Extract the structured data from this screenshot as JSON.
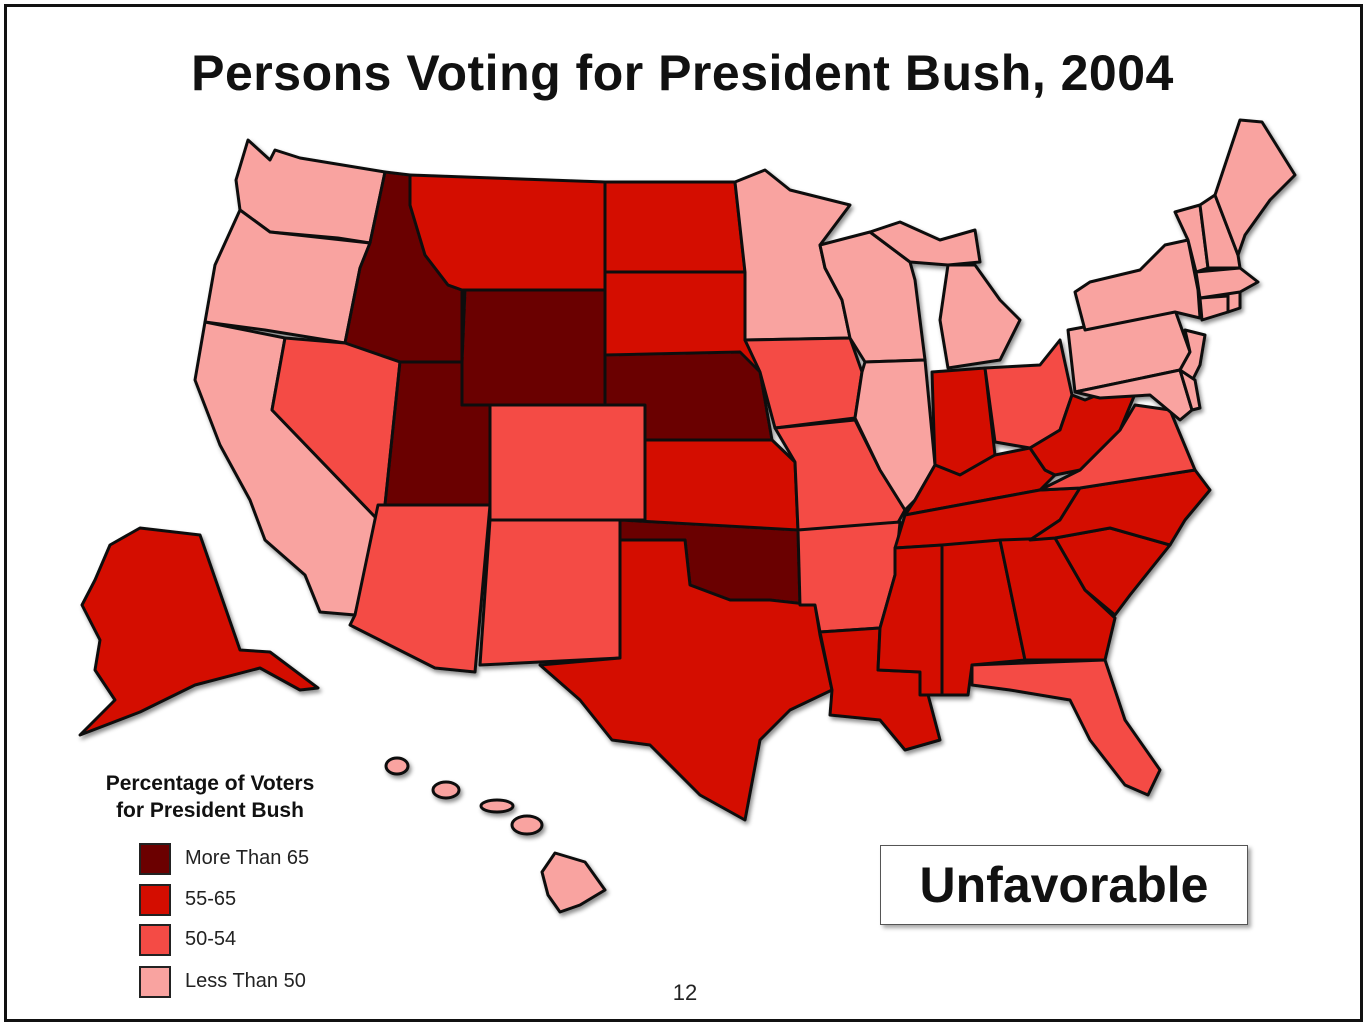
{
  "title": "Persons Voting for President Bush, 2004",
  "legend": {
    "title_line1": "Percentage of Voters",
    "title_line2": "for President Bush",
    "categories": [
      {
        "label": "More Than 65",
        "color": "#6b0000"
      },
      {
        "label": "55-65",
        "color": "#d40d00"
      },
      {
        "label": "50-54",
        "color": "#f44b45"
      },
      {
        "label": "Less Than 50",
        "color": "#f9a3a0"
      }
    ]
  },
  "badge": "Unfavorable",
  "page_number": "12",
  "colors": {
    "more_than_65": "#6b0000",
    "r55_65": "#d40d00",
    "r50_54": "#f44b45",
    "less_than_50": "#f9a3a0",
    "border": "#111111"
  },
  "state_categories": {
    "washington": "less_than_50",
    "oregon": "less_than_50",
    "california": "less_than_50",
    "idaho": "more_than_65",
    "nevada": "r50_54",
    "utah": "more_than_65",
    "arizona": "r50_54",
    "montana": "r55_65",
    "wyoming": "more_than_65",
    "colorado": "r50_54",
    "new_mexico": "r50_54",
    "north_dakota": "r55_65",
    "south_dakota": "r55_65",
    "nebraska": "more_than_65",
    "kansas": "r55_65",
    "oklahoma": "more_than_65",
    "texas": "r55_65",
    "minnesota": "less_than_50",
    "iowa": "r50_54",
    "missouri": "r50_54",
    "arkansas": "r50_54",
    "louisiana": "r55_65",
    "wisconsin": "less_than_50",
    "illinois": "less_than_50",
    "michigan": "less_than_50",
    "indiana": "r55_65",
    "ohio": "r50_54",
    "kentucky": "r55_65",
    "tennessee": "r55_65",
    "mississippi": "r55_65",
    "alabama": "r55_65",
    "georgia": "r55_65",
    "florida": "r50_54",
    "south_carolina": "r55_65",
    "north_carolina": "r55_65",
    "virginia": "r50_54",
    "west_virginia": "r55_65",
    "pennsylvania": "less_than_50",
    "new_york": "less_than_50",
    "new_jersey": "less_than_50",
    "maryland": "less_than_50",
    "delaware": "less_than_50",
    "connecticut": "less_than_50",
    "rhode_island": "less_than_50",
    "massachusetts": "less_than_50",
    "vermont": "less_than_50",
    "new_hampshire": "less_than_50",
    "maine": "less_than_50",
    "alaska": "r55_65",
    "hawaii": "less_than_50"
  }
}
